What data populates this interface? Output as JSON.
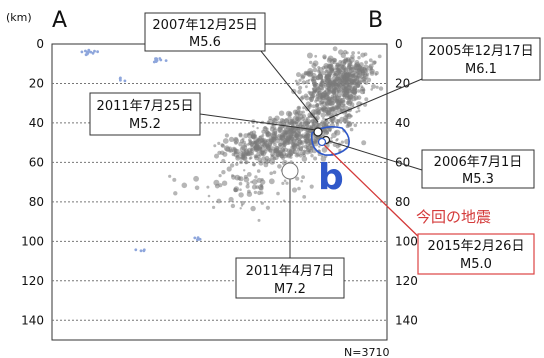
{
  "chart_data": {
    "type": "scatter",
    "y_unit": "(km)",
    "ylim": [
      0,
      150
    ],
    "y_ticks": [
      0,
      20,
      40,
      60,
      80,
      100,
      120,
      140
    ],
    "grid": true,
    "section_start": "A",
    "section_end": "B",
    "cluster_label": "b",
    "count": "N=3710",
    "this_event_label": "今回の地震",
    "colors": {
      "events": "#7a7a7a",
      "small_events": "#8ea6dc",
      "this_event": "#e04a4a",
      "b_label": "#2f58c9"
    },
    "events": [
      {
        "date": "2007年12月25日",
        "mag": "M5.6",
        "depth": 43,
        "highlight": false
      },
      {
        "date": "2005年12月17日",
        "mag": "M6.1",
        "depth": 47,
        "highlight": false
      },
      {
        "date": "2011年7月25日",
        "mag": "M5.2",
        "depth": 44,
        "highlight": false
      },
      {
        "date": "2006年7月1日",
        "mag": "M5.3",
        "depth": 50,
        "highlight": false
      },
      {
        "date": "2015年2月26日",
        "mag": "M5.0",
        "depth": 50,
        "highlight": true
      },
      {
        "date": "2011年4月7日",
        "mag": "M7.2",
        "depth": 66,
        "highlight": false
      }
    ]
  }
}
